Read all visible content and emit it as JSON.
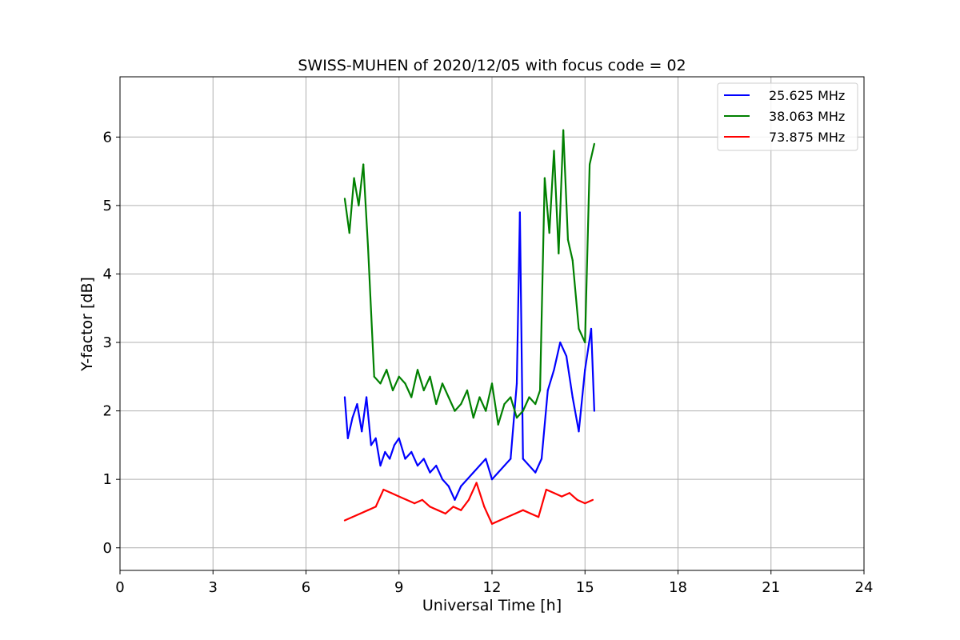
{
  "chart_data": {
    "type": "line",
    "title": "SWISS-MUHEN of 2020/12/05 with focus code = 02",
    "xlabel": "Universal Time [h]",
    "ylabel": "Y-factor [dB]",
    "xlim": [
      0,
      24
    ],
    "ylim": [
      -0.33,
      6.88
    ],
    "xticks": [
      0,
      3,
      6,
      9,
      12,
      15,
      18,
      21,
      24
    ],
    "yticks": [
      0,
      1,
      2,
      3,
      4,
      5,
      6
    ],
    "grid": true,
    "legend_position": "top-right",
    "series": [
      {
        "name": "25.625 MHz",
        "color": "#0000ff",
        "x": [
          7.25,
          7.35,
          7.5,
          7.65,
          7.8,
          7.95,
          8.1,
          8.25,
          8.4,
          8.55,
          8.7,
          8.85,
          9.0,
          9.2,
          9.4,
          9.6,
          9.8,
          10.0,
          10.2,
          10.4,
          10.6,
          10.8,
          11.0,
          11.2,
          11.4,
          11.6,
          11.8,
          12.0,
          12.2,
          12.4,
          12.6,
          12.8,
          12.9,
          13.0,
          13.2,
          13.4,
          13.6,
          13.8,
          14.0,
          14.2,
          14.4,
          14.6,
          14.8,
          15.0,
          15.2,
          15.3
        ],
        "y": [
          2.2,
          1.6,
          1.9,
          2.1,
          1.7,
          2.2,
          1.5,
          1.6,
          1.2,
          1.4,
          1.3,
          1.5,
          1.6,
          1.3,
          1.4,
          1.2,
          1.3,
          1.1,
          1.2,
          1.0,
          0.9,
          0.7,
          0.9,
          1.0,
          1.1,
          1.2,
          1.3,
          1.0,
          1.1,
          1.2,
          1.3,
          2.4,
          4.9,
          1.3,
          1.2,
          1.1,
          1.3,
          2.3,
          2.6,
          3.0,
          2.8,
          2.2,
          1.7,
          2.6,
          3.2,
          2.0
        ]
      },
      {
        "name": "38.063 MHz",
        "color": "#008000",
        "x": [
          7.25,
          7.4,
          7.55,
          7.7,
          7.85,
          8.0,
          8.2,
          8.4,
          8.6,
          8.8,
          9.0,
          9.2,
          9.4,
          9.6,
          9.8,
          10.0,
          10.2,
          10.4,
          10.6,
          10.8,
          11.0,
          11.2,
          11.4,
          11.6,
          11.8,
          12.0,
          12.2,
          12.4,
          12.6,
          12.8,
          13.0,
          13.2,
          13.4,
          13.55,
          13.7,
          13.85,
          14.0,
          14.15,
          14.3,
          14.45,
          14.6,
          14.8,
          15.0,
          15.15,
          15.3
        ],
        "y": [
          5.1,
          4.6,
          5.4,
          5.0,
          5.6,
          4.4,
          2.5,
          2.4,
          2.6,
          2.3,
          2.5,
          2.4,
          2.2,
          2.6,
          2.3,
          2.5,
          2.1,
          2.4,
          2.2,
          2.0,
          2.1,
          2.3,
          1.9,
          2.2,
          2.0,
          2.4,
          1.8,
          2.1,
          2.2,
          1.9,
          2.0,
          2.2,
          2.1,
          2.3,
          5.4,
          4.6,
          5.8,
          4.3,
          6.1,
          4.5,
          4.2,
          3.2,
          3.0,
          5.6,
          5.9
        ]
      },
      {
        "name": "73.875 MHz",
        "color": "#ff0000",
        "x": [
          7.25,
          7.5,
          7.75,
          8.0,
          8.25,
          8.5,
          8.75,
          9.0,
          9.25,
          9.5,
          9.75,
          10.0,
          10.25,
          10.5,
          10.75,
          11.0,
          11.25,
          11.5,
          11.75,
          12.0,
          12.25,
          12.5,
          12.75,
          13.0,
          13.25,
          13.5,
          13.75,
          14.0,
          14.25,
          14.5,
          14.75,
          15.0,
          15.25
        ],
        "y": [
          0.4,
          0.45,
          0.5,
          0.55,
          0.6,
          0.85,
          0.8,
          0.75,
          0.7,
          0.65,
          0.7,
          0.6,
          0.55,
          0.5,
          0.6,
          0.55,
          0.7,
          0.95,
          0.6,
          0.35,
          0.4,
          0.45,
          0.5,
          0.55,
          0.5,
          0.45,
          0.85,
          0.8,
          0.75,
          0.8,
          0.7,
          0.65,
          0.7
        ]
      }
    ]
  }
}
